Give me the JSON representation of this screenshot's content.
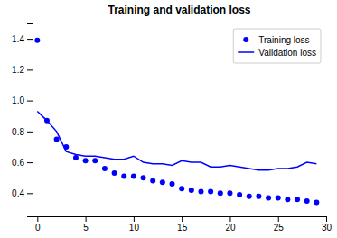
{
  "chart_data": {
    "type": "line",
    "title": "Training and validation loss",
    "x": [
      0,
      1,
      2,
      3,
      4,
      5,
      6,
      7,
      8,
      9,
      10,
      11,
      12,
      13,
      14,
      15,
      16,
      17,
      18,
      19,
      20,
      21,
      22,
      23,
      24,
      25,
      26,
      27,
      28,
      29
    ],
    "series": [
      {
        "name": "Training loss",
        "type": "scatter",
        "marker": "circle",
        "color": "#0000ff",
        "values": [
          1.39,
          0.87,
          0.75,
          0.7,
          0.63,
          0.61,
          0.61,
          0.56,
          0.53,
          0.51,
          0.51,
          0.5,
          0.48,
          0.47,
          0.46,
          0.43,
          0.42,
          0.41,
          0.41,
          0.4,
          0.4,
          0.39,
          0.38,
          0.38,
          0.37,
          0.37,
          0.36,
          0.36,
          0.35,
          0.34
        ]
      },
      {
        "name": "Validation loss",
        "type": "line",
        "color": "#0000ff",
        "values": [
          0.93,
          0.87,
          0.8,
          0.67,
          0.65,
          0.64,
          0.64,
          0.63,
          0.62,
          0.62,
          0.64,
          0.6,
          0.59,
          0.59,
          0.58,
          0.61,
          0.6,
          0.6,
          0.57,
          0.57,
          0.58,
          0.57,
          0.56,
          0.55,
          0.55,
          0.56,
          0.56,
          0.57,
          0.6,
          0.59
        ]
      }
    ],
    "xlim": [
      -0.5,
      30
    ],
    "ylim": [
      0.25,
      1.5
    ],
    "xticks": [
      0,
      5,
      10,
      15,
      20,
      25,
      30
    ],
    "yticks": [
      0.4,
      0.6,
      0.8,
      {
        "value": 1.0,
        "label": "1.0"
      },
      1.2,
      1.4
    ],
    "grid": false,
    "legend": "top-right"
  }
}
